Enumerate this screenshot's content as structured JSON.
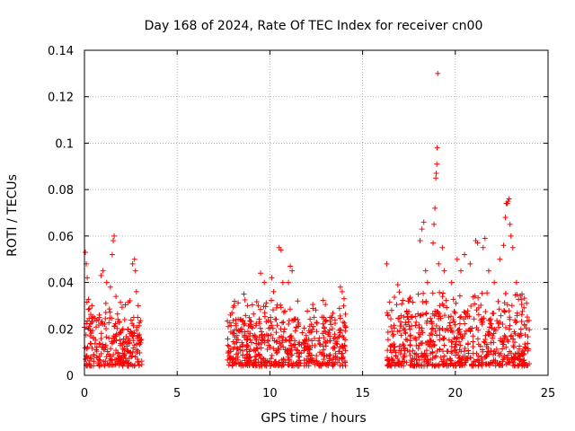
{
  "chart_data": {
    "type": "scatter",
    "title": "Day 168 of 2024, Rate Of TEC Index for receiver cn00",
    "xlabel": "GPS time / hours",
    "ylabel": "ROTI / TECUs",
    "xlim": [
      0,
      25
    ],
    "ylim": [
      0,
      0.14
    ],
    "xticks": [
      0,
      5,
      10,
      15,
      20,
      25
    ],
    "yticks": [
      0,
      0.02,
      0.04,
      0.06,
      0.08,
      0.1,
      0.12,
      0.14
    ],
    "xtick_labels": [
      "0",
      "5",
      "10",
      "15",
      "20",
      "25"
    ],
    "ytick_labels": [
      "0",
      "0.02",
      "0.04",
      "0.06",
      "0.08",
      "0.1",
      "0.12",
      "0.14"
    ],
    "grid": true,
    "marker": "+",
    "color": "#ff0000",
    "series": [
      {
        "name": "ROTI",
        "segments": [
          {
            "x_start": 0.0,
            "x_end": 3.1,
            "baseline_low": 0.004,
            "baseline_high": 0.025
          },
          {
            "x_start": 7.7,
            "x_end": 14.1,
            "baseline_low": 0.004,
            "baseline_high": 0.025
          },
          {
            "x_start": 16.3,
            "x_end": 24.0,
            "baseline_low": 0.004,
            "baseline_high": 0.028
          }
        ],
        "outliers": [
          {
            "x": 0.05,
            "y": 0.053
          },
          {
            "x": 0.1,
            "y": 0.048
          },
          {
            "x": 0.15,
            "y": 0.042
          },
          {
            "x": 0.4,
            "y": 0.03
          },
          {
            "x": 0.9,
            "y": 0.043
          },
          {
            "x": 1.0,
            "y": 0.045
          },
          {
            "x": 1.2,
            "y": 0.04
          },
          {
            "x": 1.4,
            "y": 0.038
          },
          {
            "x": 1.5,
            "y": 0.052
          },
          {
            "x": 1.55,
            "y": 0.058
          },
          {
            "x": 1.6,
            "y": 0.06
          },
          {
            "x": 1.7,
            "y": 0.034
          },
          {
            "x": 2.6,
            "y": 0.048
          },
          {
            "x": 2.7,
            "y": 0.05
          },
          {
            "x": 2.75,
            "y": 0.045
          },
          {
            "x": 2.8,
            "y": 0.036
          },
          {
            "x": 2.9,
            "y": 0.03
          },
          {
            "x": 8.6,
            "y": 0.035
          },
          {
            "x": 8.8,
            "y": 0.03
          },
          {
            "x": 9.5,
            "y": 0.044
          },
          {
            "x": 9.7,
            "y": 0.04
          },
          {
            "x": 10.1,
            "y": 0.042
          },
          {
            "x": 10.2,
            "y": 0.036
          },
          {
            "x": 10.5,
            "y": 0.055
          },
          {
            "x": 10.6,
            "y": 0.054
          },
          {
            "x": 10.7,
            "y": 0.04
          },
          {
            "x": 11.0,
            "y": 0.04
          },
          {
            "x": 11.1,
            "y": 0.047
          },
          {
            "x": 11.2,
            "y": 0.045
          },
          {
            "x": 11.5,
            "y": 0.032
          },
          {
            "x": 13.8,
            "y": 0.038
          },
          {
            "x": 13.9,
            "y": 0.036
          },
          {
            "x": 14.0,
            "y": 0.033
          },
          {
            "x": 16.3,
            "y": 0.048
          },
          {
            "x": 16.9,
            "y": 0.039
          },
          {
            "x": 17.5,
            "y": 0.032
          },
          {
            "x": 18.1,
            "y": 0.058
          },
          {
            "x": 18.2,
            "y": 0.063
          },
          {
            "x": 18.3,
            "y": 0.066
          },
          {
            "x": 18.4,
            "y": 0.045
          },
          {
            "x": 18.5,
            "y": 0.04
          },
          {
            "x": 18.8,
            "y": 0.057
          },
          {
            "x": 18.85,
            "y": 0.065
          },
          {
            "x": 18.9,
            "y": 0.072
          },
          {
            "x": 18.95,
            "y": 0.085
          },
          {
            "x": 18.97,
            "y": 0.087
          },
          {
            "x": 19.0,
            "y": 0.091
          },
          {
            "x": 19.02,
            "y": 0.098
          },
          {
            "x": 19.05,
            "y": 0.13
          },
          {
            "x": 19.1,
            "y": 0.048
          },
          {
            "x": 19.3,
            "y": 0.055
          },
          {
            "x": 19.4,
            "y": 0.045
          },
          {
            "x": 19.8,
            "y": 0.04
          },
          {
            "x": 20.1,
            "y": 0.05
          },
          {
            "x": 20.3,
            "y": 0.045
          },
          {
            "x": 20.5,
            "y": 0.052
          },
          {
            "x": 20.8,
            "y": 0.048
          },
          {
            "x": 21.1,
            "y": 0.058
          },
          {
            "x": 21.2,
            "y": 0.057
          },
          {
            "x": 21.5,
            "y": 0.055
          },
          {
            "x": 21.6,
            "y": 0.059
          },
          {
            "x": 21.8,
            "y": 0.045
          },
          {
            "x": 22.1,
            "y": 0.04
          },
          {
            "x": 22.4,
            "y": 0.05
          },
          {
            "x": 22.6,
            "y": 0.056
          },
          {
            "x": 22.7,
            "y": 0.068
          },
          {
            "x": 22.75,
            "y": 0.074
          },
          {
            "x": 22.8,
            "y": 0.074
          },
          {
            "x": 22.85,
            "y": 0.075
          },
          {
            "x": 22.9,
            "y": 0.076
          },
          {
            "x": 22.95,
            "y": 0.065
          },
          {
            "x": 23.0,
            "y": 0.06
          },
          {
            "x": 23.1,
            "y": 0.055
          },
          {
            "x": 23.3,
            "y": 0.04
          },
          {
            "x": 23.6,
            "y": 0.035
          }
        ]
      }
    ]
  }
}
